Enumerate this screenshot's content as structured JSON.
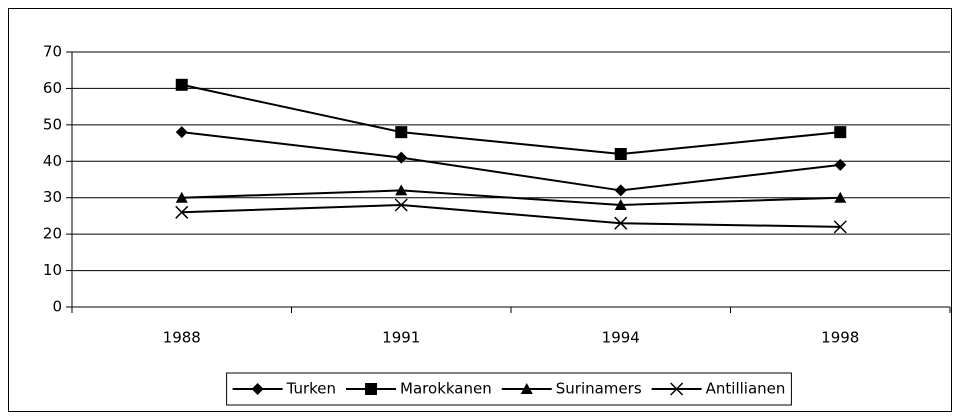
{
  "chart_data": {
    "type": "line",
    "categories": [
      "1988",
      "1991",
      "1994",
      "1998"
    ],
    "series": [
      {
        "name": "Turken",
        "color": "#000000",
        "marker": "diamond",
        "values": [
          48,
          41,
          32,
          39
        ]
      },
      {
        "name": "Marokkanen",
        "color": "#000000",
        "marker": "square",
        "values": [
          61,
          48,
          42,
          48
        ]
      },
      {
        "name": "Surinamers",
        "color": "#000000",
        "marker": "triangle",
        "values": [
          30,
          32,
          28,
          30
        ]
      },
      {
        "name": "Antillianen",
        "color": "#000000",
        "marker": "x",
        "values": [
          26,
          28,
          23,
          22
        ]
      }
    ],
    "ylim": [
      0,
      70
    ],
    "yticks": [
      0,
      10,
      20,
      30,
      40,
      50,
      60,
      70
    ],
    "grid": true,
    "legend": "bottom"
  }
}
